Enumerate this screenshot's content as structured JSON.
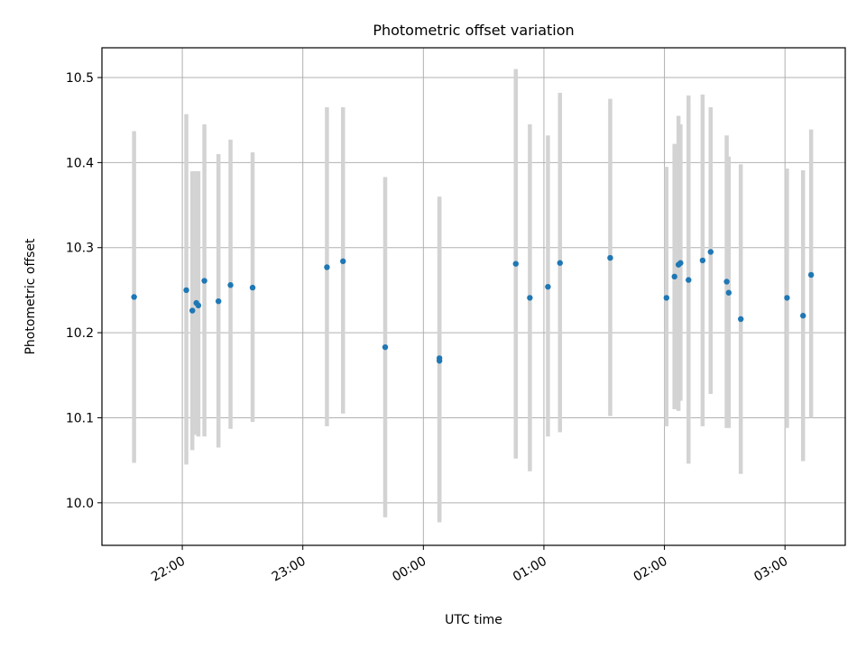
{
  "chart_data": {
    "type": "scatter",
    "title": "Photometric offset variation",
    "xlabel": "UTC time",
    "ylabel": "Photometric offset",
    "x_axis": {
      "kind": "time",
      "range": [
        "21:20",
        "03:30"
      ],
      "ticks": [
        "22:00",
        "23:00",
        "00:00",
        "01:00",
        "02:00",
        "03:00"
      ],
      "tick_label_rotation": "30deg"
    },
    "y_axis": {
      "range": [
        9.95,
        10.535
      ],
      "ticks": [
        10.0,
        10.1,
        10.2,
        10.3,
        10.4,
        10.5
      ],
      "tick_labels": [
        "10.0",
        "10.1",
        "10.2",
        "10.3",
        "10.4",
        "10.5"
      ]
    },
    "grid": true,
    "marker_color": "#1f77b4",
    "errorbar_color": "#d3d3d3",
    "points": [
      {
        "t": "21:36",
        "y": 10.242,
        "low": 10.047,
        "high": 10.437
      },
      {
        "t": "22:02",
        "y": 10.25,
        "low": 10.045,
        "high": 10.457
      },
      {
        "t": "22:05",
        "y": 10.226,
        "low": 10.062,
        "high": 10.39
      },
      {
        "t": "22:07",
        "y": 10.235,
        "low": 10.08,
        "high": 10.39
      },
      {
        "t": "22:08",
        "y": 10.232,
        "low": 10.078,
        "high": 10.39
      },
      {
        "t": "22:11",
        "y": 10.261,
        "low": 10.078,
        "high": 10.445
      },
      {
        "t": "22:18",
        "y": 10.237,
        "low": 10.065,
        "high": 10.41
      },
      {
        "t": "22:24",
        "y": 10.256,
        "low": 10.087,
        "high": 10.427
      },
      {
        "t": "22:35",
        "y": 10.253,
        "low": 10.095,
        "high": 10.412
      },
      {
        "t": "23:12",
        "y": 10.277,
        "low": 10.09,
        "high": 10.465
      },
      {
        "t": "23:20",
        "y": 10.284,
        "low": 10.105,
        "high": 10.465
      },
      {
        "t": "23:41",
        "y": 10.183,
        "low": 9.983,
        "high": 10.383
      },
      {
        "t": "00:08",
        "y": 10.17,
        "low": 9.98,
        "high": 10.36
      },
      {
        "t": "00:08",
        "y": 10.167,
        "low": 9.977,
        "high": 10.357
      },
      {
        "t": "00:46",
        "y": 10.281,
        "low": 10.052,
        "high": 10.51
      },
      {
        "t": "00:53",
        "y": 10.241,
        "low": 10.037,
        "high": 10.445
      },
      {
        "t": "01:02",
        "y": 10.254,
        "low": 10.078,
        "high": 10.432
      },
      {
        "t": "01:08",
        "y": 10.282,
        "low": 10.083,
        "high": 10.482
      },
      {
        "t": "01:33",
        "y": 10.288,
        "low": 10.102,
        "high": 10.475
      },
      {
        "t": "02:01",
        "y": 10.241,
        "low": 10.09,
        "high": 10.395
      },
      {
        "t": "02:05",
        "y": 10.266,
        "low": 10.11,
        "high": 10.422
      },
      {
        "t": "02:07",
        "y": 10.28,
        "low": 10.108,
        "high": 10.455
      },
      {
        "t": "02:08",
        "y": 10.282,
        "low": 10.12,
        "high": 10.445
      },
      {
        "t": "02:12",
        "y": 10.262,
        "low": 10.046,
        "high": 10.479
      },
      {
        "t": "02:19",
        "y": 10.285,
        "low": 10.09,
        "high": 10.48
      },
      {
        "t": "02:23",
        "y": 10.295,
        "low": 10.128,
        "high": 10.465
      },
      {
        "t": "02:31",
        "y": 10.26,
        "low": 10.088,
        "high": 10.432
      },
      {
        "t": "02:32",
        "y": 10.247,
        "low": 10.088,
        "high": 10.407
      },
      {
        "t": "02:38",
        "y": 10.216,
        "low": 10.034,
        "high": 10.398
      },
      {
        "t": "03:01",
        "y": 10.241,
        "low": 10.088,
        "high": 10.393
      },
      {
        "t": "03:09",
        "y": 10.22,
        "low": 10.049,
        "high": 10.391
      },
      {
        "t": "03:13",
        "y": 10.268,
        "low": 10.1,
        "high": 10.439
      }
    ]
  }
}
